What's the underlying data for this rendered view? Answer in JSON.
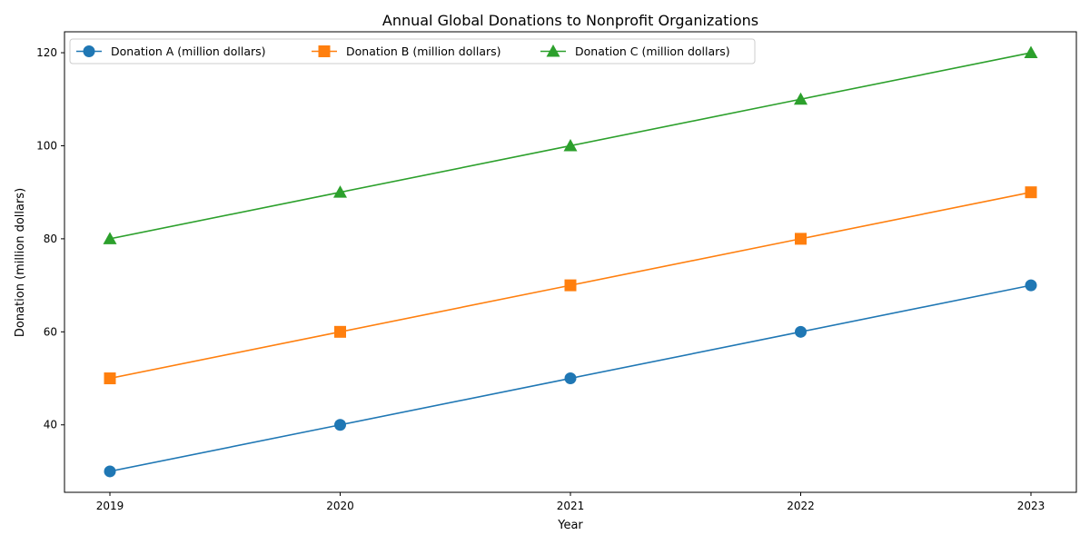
{
  "chart_data": {
    "type": "line",
    "title": "Annual Global Donations to Nonprofit Organizations",
    "xlabel": "Year",
    "ylabel": "Donation (million dollars)",
    "categories": [
      "2019",
      "2020",
      "2021",
      "2022",
      "2023"
    ],
    "x_ticks": [
      "2019",
      "2020",
      "2021",
      "2022",
      "2023"
    ],
    "y_ticks": [
      40,
      60,
      80,
      100,
      120
    ],
    "ylim": [
      25.5,
      124.5
    ],
    "grid": false,
    "legend_position": "top-left",
    "series": [
      {
        "name": "Donation A (million dollars)",
        "values": [
          30,
          40,
          50,
          60,
          70
        ],
        "color": "#1f77b4",
        "marker": "circle"
      },
      {
        "name": "Donation B (million dollars)",
        "values": [
          50,
          60,
          70,
          80,
          90
        ],
        "color": "#ff7f0e",
        "marker": "square"
      },
      {
        "name": "Donation C (million dollars)",
        "values": [
          80,
          90,
          100,
          110,
          120
        ],
        "color": "#2ca02c",
        "marker": "triangle"
      }
    ]
  }
}
